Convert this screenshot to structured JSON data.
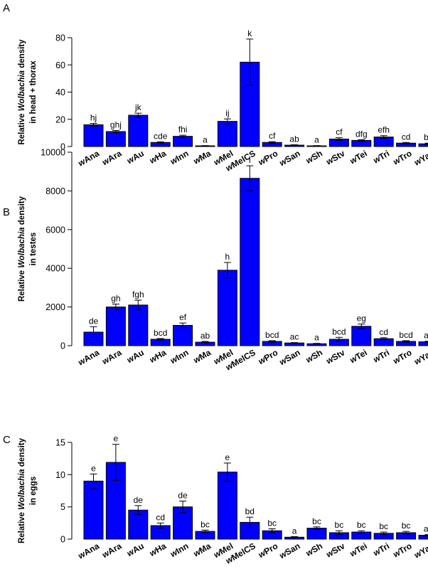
{
  "chart_data": [
    {
      "type": "bar",
      "panel_label": "A",
      "ylabel_parts": [
        {
          "pre": "Relative ",
          "ital": "Wolbachia",
          "post": " density"
        },
        {
          "pre": "in head + thorax",
          "ital": "",
          "post": ""
        }
      ],
      "ylim": [
        0,
        80
      ],
      "yticks": [
        0,
        20,
        40,
        60,
        80
      ],
      "categories": [
        "wAna",
        "wAra",
        "wAu",
        "wHa",
        "wInn",
        "wMa",
        "wMel",
        "wMelCS",
        "wPro",
        "wSan",
        "wSh",
        "wStv",
        "wTei",
        "wTri",
        "wTro",
        "wYak"
      ],
      "values": [
        16.0,
        11.0,
        23.0,
        3.0,
        7.5,
        0.5,
        18.5,
        62.0,
        3.0,
        1.0,
        0.5,
        5.5,
        4.5,
        7.0,
        2.5,
        2.0
      ],
      "errors": [
        1.0,
        0.8,
        1.5,
        0.4,
        0.8,
        0.2,
        1.8,
        17.0,
        0.6,
        0.3,
        0.2,
        1.0,
        0.5,
        1.0,
        0.5,
        0.5
      ],
      "letters": [
        "hj",
        "ghj",
        "jk",
        "cde",
        "fhi",
        "a",
        "ij",
        "k",
        "cf",
        "ab",
        "a",
        "cf",
        "dfg",
        "efh",
        "cd",
        "bc"
      ],
      "bar_color": "#0000ff"
    },
    {
      "type": "bar",
      "panel_label": "B",
      "ylabel_parts": [
        {
          "pre": "Relative ",
          "ital": "Wolbachia",
          "post": " density"
        },
        {
          "pre": "in testes",
          "ital": "",
          "post": ""
        }
      ],
      "ylim": [
        0,
        10000
      ],
      "yticks": [
        0,
        2000,
        4000,
        6000,
        8000,
        10000
      ],
      "categories": [
        "wAna",
        "wAra",
        "wAu",
        "wHa",
        "wInn",
        "wMa",
        "wMel",
        "wMelCS",
        "wPro",
        "wSan",
        "wSh",
        "wStv",
        "wTei",
        "wTri",
        "wTro",
        "wYak"
      ],
      "values": [
        700,
        2000,
        2100,
        330,
        1050,
        180,
        3900,
        8650,
        220,
        140,
        100,
        330,
        1000,
        360,
        220,
        200
      ],
      "errors": [
        280,
        150,
        250,
        40,
        120,
        40,
        400,
        650,
        40,
        20,
        20,
        100,
        120,
        50,
        40,
        30
      ],
      "letters": [
        "de",
        "gh",
        "fgh",
        "bcd",
        "ef",
        "ab",
        "h",
        "i",
        "bcd",
        "ac",
        "a",
        "bcd",
        "eg",
        "cd",
        "bcd",
        "ac"
      ],
      "bar_color": "#0000ff"
    },
    {
      "type": "bar",
      "panel_label": "C",
      "ylabel_parts": [
        {
          "pre": "Relative ",
          "ital": "Wolbachia",
          "post": " density"
        },
        {
          "pre": "in eggs",
          "ital": "",
          "post": ""
        }
      ],
      "ylim": [
        0,
        15
      ],
      "yticks": [
        0,
        5,
        10,
        15
      ],
      "categories": [
        "wAna",
        "wAra",
        "wAu",
        "wHa",
        "wInn",
        "wMa",
        "wMel",
        "wMelCS",
        "wPro",
        "wSan",
        "wSh",
        "wStv",
        "wTei",
        "wTri",
        "wTro",
        "wYak"
      ],
      "values": [
        9.0,
        11.9,
        4.5,
        2.1,
        5.0,
        1.2,
        10.4,
        2.6,
        1.3,
        0.3,
        1.7,
        1.0,
        1.1,
        0.9,
        1.0,
        0.6
      ],
      "errors": [
        1.1,
        2.8,
        0.7,
        0.4,
        0.9,
        0.2,
        1.4,
        0.8,
        0.3,
        0.1,
        0.2,
        0.3,
        0.2,
        0.2,
        0.2,
        0.1
      ],
      "letters": [
        "e",
        "e",
        "de",
        "cd",
        "de",
        "bc",
        "e",
        "bd",
        "bc",
        "a",
        "bc",
        "bc",
        "bc",
        "bc",
        "bc",
        "ab"
      ],
      "bar_color": "#0000ff"
    }
  ]
}
